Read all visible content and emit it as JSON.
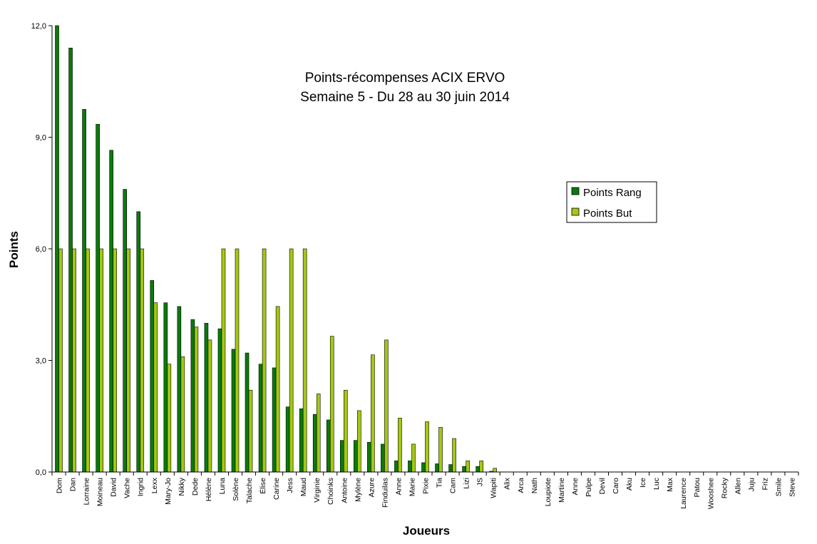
{
  "chart_data": {
    "type": "bar",
    "title": "Points-récompenses ACIX ERVO",
    "subtitle": "Semaine 5 - Du 28 au 30 juin 2014",
    "xlabel": "Joueurs",
    "ylabel": "Points",
    "ylim": [
      0,
      12
    ],
    "yticks": [
      "0,0",
      "3,0",
      "6,0",
      "9,0",
      "12,0"
    ],
    "ytick_values": [
      0,
      3,
      6,
      9,
      12
    ],
    "grid": false,
    "legend_position": "right",
    "categories": [
      "Dom",
      "Dan",
      "Lorraine",
      "Moineau",
      "David",
      "Vache",
      "Ingrid",
      "Lexx",
      "Mary-Jo",
      "Nikky",
      "Dede",
      "Hélène",
      "Luna",
      "Solène",
      "Talache",
      "Élise",
      "Carine",
      "Jess",
      "Maud",
      "Virginie",
      "Choinks",
      "Antoine",
      "Mylène",
      "Azure",
      "Finduilas",
      "Anne",
      "Marie",
      "Pixie",
      "Tia",
      "Cam",
      "Lizi",
      "JS",
      "Wapiti",
      "Alix",
      "Arca",
      "Nath",
      "Loupiote",
      "Martine",
      "Anne",
      "Pulpe",
      "Devil",
      "Caro",
      "Aku",
      "Ice",
      "Luc",
      "Max",
      "Laurence",
      "Patou",
      "Wooshee",
      "Rocky",
      "Allen",
      "Juju",
      "Friz",
      "Smile",
      "Steve"
    ],
    "series": [
      {
        "name": "Points Rang",
        "color": "#0a7a0a",
        "values": [
          12.0,
          11.4,
          9.75,
          9.35,
          8.65,
          7.6,
          7.0,
          5.15,
          4.55,
          4.45,
          4.1,
          4.0,
          3.85,
          3.3,
          3.2,
          2.9,
          2.8,
          1.75,
          1.7,
          1.55,
          1.4,
          0.85,
          0.85,
          0.8,
          0.75,
          0.3,
          0.3,
          0.25,
          0.22,
          0.2,
          0.15,
          0.15,
          0.02,
          0,
          0,
          0,
          0,
          0,
          0,
          0,
          0,
          0,
          0,
          0,
          0,
          0,
          0,
          0,
          0,
          0,
          0,
          0,
          0,
          0,
          0
        ]
      },
      {
        "name": "Points But",
        "color": "#a4c814",
        "values": [
          6,
          6,
          6,
          6,
          6,
          6,
          6,
          4.55,
          2.9,
          3.1,
          3.9,
          3.55,
          6,
          6,
          2.2,
          6,
          4.45,
          6,
          6,
          2.1,
          3.65,
          2.2,
          1.65,
          3.15,
          3.55,
          1.45,
          0.75,
          1.35,
          1.2,
          0.9,
          0.3,
          0.3,
          0.1,
          0,
          0,
          0,
          0,
          0,
          0,
          0,
          0,
          0,
          0,
          0,
          0,
          0,
          0,
          0,
          0,
          0,
          0,
          0,
          0,
          0,
          0
        ]
      }
    ]
  }
}
